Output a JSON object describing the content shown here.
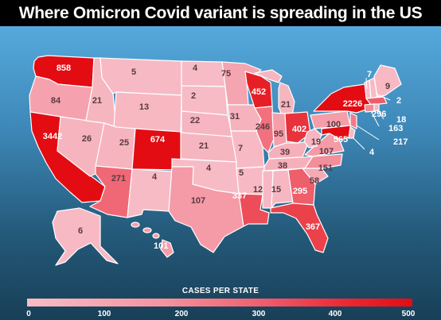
{
  "title": "Where Omicron Covid variant is spreading in the US",
  "legend": {
    "title": "CASES PER STATE",
    "ticks": [
      "0",
      "100",
      "200",
      "300",
      "400",
      "500"
    ],
    "range": [
      0,
      500
    ],
    "low_color": "#f7bcc6",
    "high_color": "#e30c12"
  },
  "colors": {
    "background_top": "#56a9dc",
    "background_bottom": "#183f57",
    "title_bar": "#000000",
    "state_border": "#ffffff"
  },
  "states": {
    "WA": "858",
    "OR": "84",
    "CA": "3442",
    "NV": "26",
    "ID": "21",
    "MT": "5",
    "WY": "13",
    "UT": "25",
    "AZ": "271",
    "NM": "4",
    "CO": "674",
    "ND": "4",
    "SD": "2",
    "NE": "22",
    "KS": "21",
    "OK": "4",
    "TX": "107",
    "MN": "75",
    "IA": "31",
    "MO": "7",
    "AR": "5",
    "LA": "337",
    "WI": "452",
    "IL": "246",
    "MI": "21",
    "IN": "95",
    "OH": "402",
    "KY": "39",
    "TN": "38",
    "MS": "12",
    "AL": "15",
    "GA": "295",
    "FL": "367",
    "SC": "58",
    "NC": "151",
    "VA": "107",
    "WV": "19",
    "PA": "100",
    "NY": "2226",
    "ME": "9",
    "VT": "7",
    "NH": "2",
    "MA": "296",
    "RI": "18",
    "CT": "163",
    "NJ": "217",
    "DE": "4",
    "MD": "565",
    "AK": "6",
    "HI": "101"
  }
}
